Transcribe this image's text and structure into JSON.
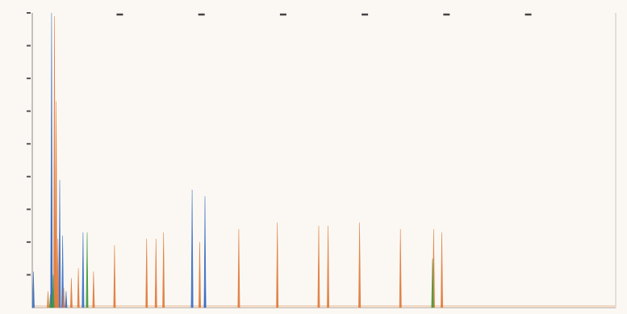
{
  "chart_data": {
    "type": "line",
    "title": "",
    "xlabel": "",
    "ylabel": "",
    "xlim": [
      0,
      1000
    ],
    "ylim": [
      0,
      9
    ],
    "y_ticks": [
      1,
      2,
      3,
      4,
      5,
      6,
      7,
      8,
      9
    ],
    "top_ticks": [
      150,
      290,
      430,
      570,
      710,
      850
    ],
    "grid": false,
    "legend": "none",
    "peak_half_width": 1.6,
    "series": [
      {
        "color": "#3a6fc4",
        "peaks": [
          {
            "x": 2,
            "y": 1.1
          },
          {
            "x": 33,
            "y": 9.0
          },
          {
            "x": 33,
            "y": 3.6
          },
          {
            "x": 47,
            "y": 3.9
          },
          {
            "x": 52,
            "y": 2.2
          },
          {
            "x": 58,
            "y": 0.5
          },
          {
            "x": 87,
            "y": 2.3
          },
          {
            "x": 274,
            "y": 3.6
          },
          {
            "x": 296,
            "y": 3.4
          },
          {
            "x": 296,
            "y": 0.6
          }
        ]
      },
      {
        "color": "#e07a3a",
        "peaks": [
          {
            "x": 27,
            "y": 0.5
          },
          {
            "x": 38,
            "y": 8.9
          },
          {
            "x": 41,
            "y": 6.3
          },
          {
            "x": 44,
            "y": 2.1
          },
          {
            "x": 54,
            "y": 0.6
          },
          {
            "x": 67,
            "y": 0.9
          },
          {
            "x": 79,
            "y": 1.2
          },
          {
            "x": 105,
            "y": 1.1
          },
          {
            "x": 141,
            "y": 1.9
          },
          {
            "x": 196,
            "y": 2.1
          },
          {
            "x": 212,
            "y": 2.1
          },
          {
            "x": 225,
            "y": 2.3
          },
          {
            "x": 287,
            "y": 2.0
          },
          {
            "x": 354,
            "y": 2.4
          },
          {
            "x": 420,
            "y": 2.6
          },
          {
            "x": 491,
            "y": 2.5
          },
          {
            "x": 507,
            "y": 2.5
          },
          {
            "x": 561,
            "y": 2.6
          },
          {
            "x": 631,
            "y": 2.4
          },
          {
            "x": 688,
            "y": 2.4
          },
          {
            "x": 702,
            "y": 2.3
          }
        ]
      },
      {
        "color": "#3f9a3a",
        "peaks": [
          {
            "x": 31,
            "y": 0.4
          },
          {
            "x": 36,
            "y": 1.0
          },
          {
            "x": 94,
            "y": 2.3
          },
          {
            "x": 686,
            "y": 1.5
          }
        ]
      }
    ]
  }
}
